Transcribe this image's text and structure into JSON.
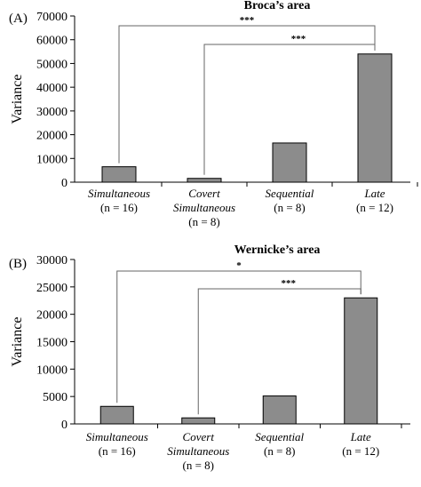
{
  "chart_data": [
    {
      "type": "bar",
      "panel_label": "(A)",
      "title": "Broca’s area",
      "ylabel": "Variance",
      "ylim": [
        0,
        70000
      ],
      "yticks": [
        "0",
        "10000",
        "20000",
        "30000",
        "40000",
        "50000",
        "60000",
        "70000"
      ],
      "categories": [
        {
          "name": "Simultaneous",
          "n": "(n = 16)"
        },
        {
          "name": "Covert Simultaneous",
          "name_lines": [
            "Covert",
            "Simultaneous"
          ],
          "n": "(n = 8)"
        },
        {
          "name": "Sequential",
          "n": "(n = 8)"
        },
        {
          "name": "Late",
          "n": "(n = 12)"
        }
      ],
      "values": [
        6500,
        1600,
        16500,
        54000
      ],
      "bar_color": "#8c8c8c",
      "grid": false,
      "significance": [
        {
          "from": 0,
          "to": 3,
          "label": "***"
        },
        {
          "from": 1,
          "to": 3,
          "label": "***"
        }
      ]
    },
    {
      "type": "bar",
      "panel_label": "(B)",
      "title": "Wernicke’s area",
      "ylabel": "Variance",
      "ylim": [
        0,
        30000
      ],
      "yticks": [
        "0",
        "5000",
        "10000",
        "15000",
        "20000",
        "25000",
        "30000"
      ],
      "categories": [
        {
          "name": "Simultaneous",
          "n": "(n = 16)"
        },
        {
          "name": "Covert Simultaneous",
          "name_lines": [
            "Covert",
            "Simultaneous"
          ],
          "n": "(n = 8)"
        },
        {
          "name": "Sequential",
          "n": "(n = 8)"
        },
        {
          "name": "Late",
          "n": "(n = 12)"
        }
      ],
      "values": [
        3200,
        1100,
        5100,
        23000
      ],
      "bar_color": "#8c8c8c",
      "grid": false,
      "significance": [
        {
          "from": 0,
          "to": 3,
          "label": "*"
        },
        {
          "from": 1,
          "to": 3,
          "label": "***"
        }
      ]
    }
  ]
}
